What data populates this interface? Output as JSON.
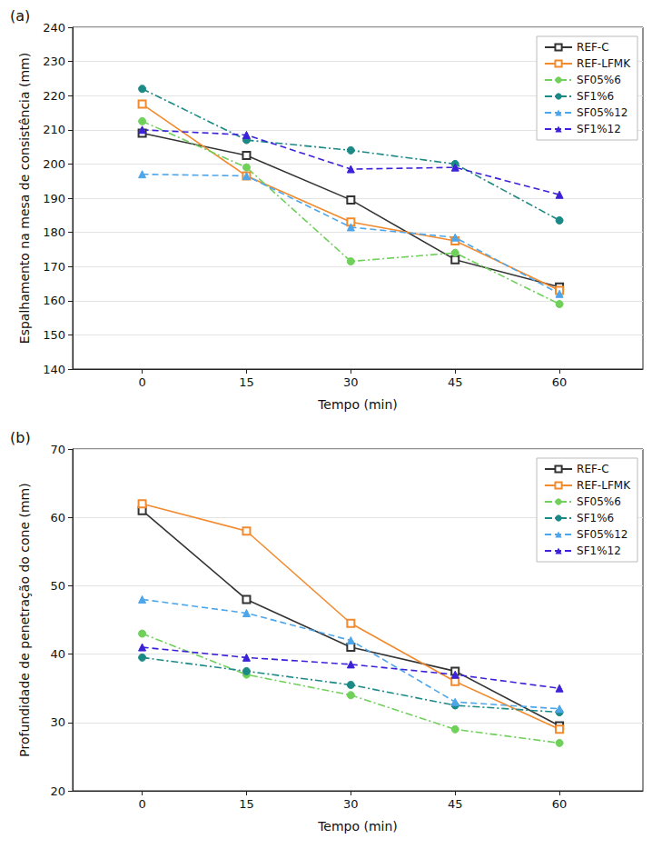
{
  "chart_data": [
    {
      "type": "line",
      "title": "(a)",
      "x_label": "Tempo (min)",
      "y_label": "Espalhamento na mesa de consistência (mm)",
      "x": [
        0,
        15,
        30,
        45,
        60
      ],
      "xlim": [
        -10,
        72
      ],
      "xticks": [
        0,
        15,
        30,
        45,
        60
      ],
      "ylim": [
        140,
        240
      ],
      "yticks": [
        140,
        150,
        160,
        170,
        180,
        190,
        200,
        210,
        220,
        230,
        240
      ],
      "grid": true,
      "legend": "upper right",
      "series": [
        {
          "name": "REF-C",
          "color": "#333333",
          "marker": "square_open",
          "line_style": "solid",
          "values": [
            209,
            202.5,
            189.5,
            172,
            164
          ]
        },
        {
          "name": "REF-LFMK",
          "color": "#f28a2e",
          "marker": "square_open",
          "line_style": "solid",
          "values": [
            217.5,
            196.5,
            183,
            177.5,
            163
          ]
        },
        {
          "name": "SF05%6",
          "color": "#6fd05a",
          "marker": "circle",
          "line_style": "dashdot",
          "values": [
            212.5,
            199,
            171.5,
            174,
            159
          ]
        },
        {
          "name": "SF1%6",
          "color": "#1b8a86",
          "marker": "circle",
          "line_style": "dashdot",
          "values": [
            222,
            207,
            204,
            200,
            183.5
          ]
        },
        {
          "name": "SF05%12",
          "color": "#4ea6ea",
          "marker": "triangle",
          "line_style": "dashed",
          "values": [
            197,
            196.5,
            181.5,
            178.5,
            162
          ]
        },
        {
          "name": "SF1%12",
          "color": "#3b22d8",
          "marker": "triangle",
          "line_style": "dashed",
          "values": [
            210,
            208.5,
            198.5,
            199,
            191
          ]
        }
      ]
    },
    {
      "type": "line",
      "title": "(b)",
      "x_label": "Tempo (min)",
      "y_label": "Profundidade de penetração do cone (mm)",
      "x": [
        0,
        15,
        30,
        45,
        60
      ],
      "xlim": [
        -10,
        72
      ],
      "xticks": [
        0,
        15,
        30,
        45,
        60
      ],
      "ylim": [
        20,
        70
      ],
      "yticks": [
        20,
        30,
        40,
        50,
        60,
        70
      ],
      "grid": true,
      "legend": "upper right",
      "series": [
        {
          "name": "REF-C",
          "color": "#333333",
          "marker": "square_open",
          "line_style": "solid",
          "values": [
            61,
            48,
            41,
            37.5,
            29.5
          ]
        },
        {
          "name": "REF-LFMK",
          "color": "#f28a2e",
          "marker": "square_open",
          "line_style": "solid",
          "values": [
            62,
            58,
            44.5,
            36,
            29
          ]
        },
        {
          "name": "SF05%6",
          "color": "#6fd05a",
          "marker": "circle",
          "line_style": "dashdot",
          "values": [
            43,
            37,
            34,
            29,
            27
          ]
        },
        {
          "name": "SF1%6",
          "color": "#1b8a86",
          "marker": "circle",
          "line_style": "dashdot",
          "values": [
            39.5,
            37.5,
            35.5,
            32.5,
            31.5
          ]
        },
        {
          "name": "SF05%12",
          "color": "#4ea6ea",
          "marker": "triangle",
          "line_style": "dashed",
          "values": [
            48,
            46,
            42,
            33,
            32
          ]
        },
        {
          "name": "SF1%12",
          "color": "#3b22d8",
          "marker": "triangle",
          "line_style": "dashed",
          "values": [
            41,
            39.5,
            38.5,
            37,
            35
          ]
        }
      ]
    }
  ]
}
